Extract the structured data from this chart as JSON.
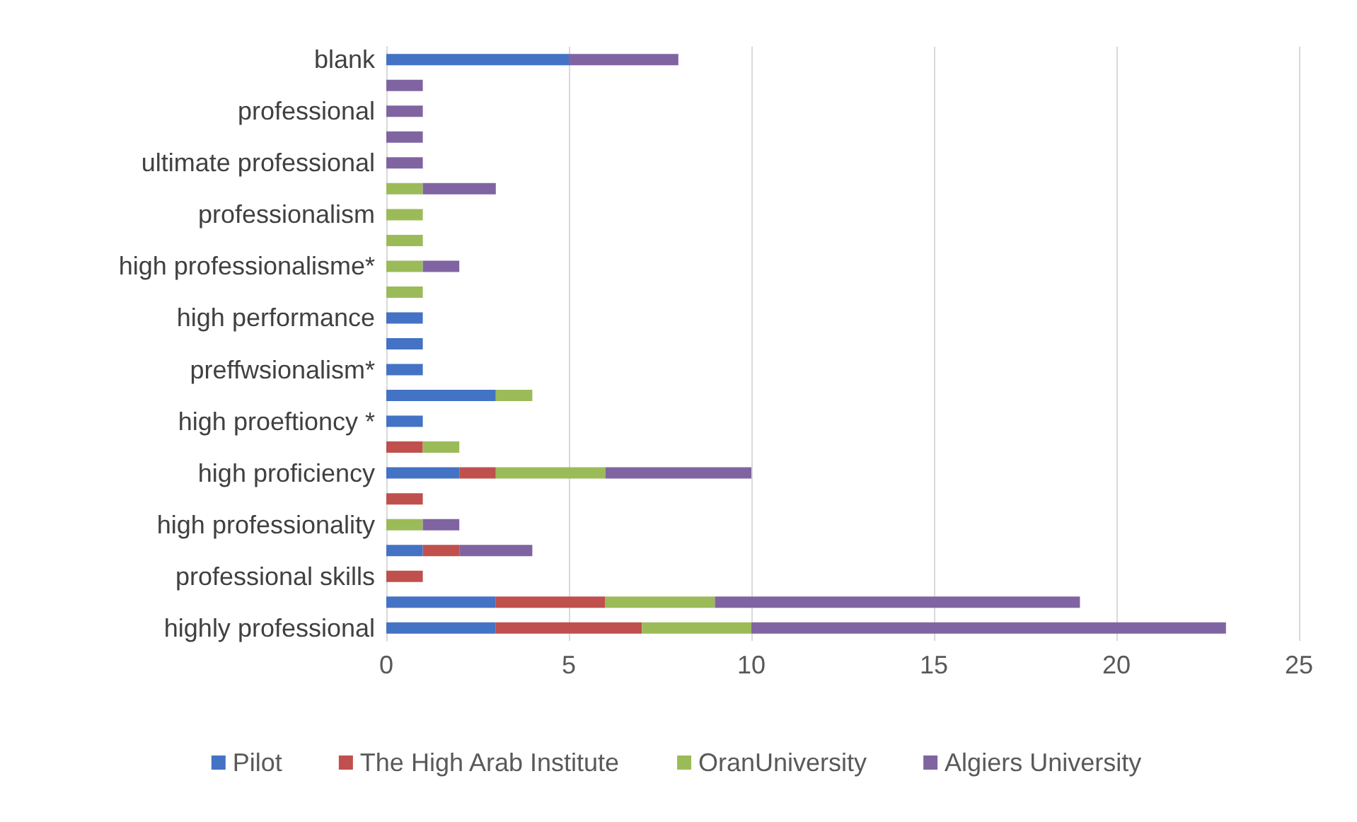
{
  "chart_data": {
    "type": "bar",
    "orientation": "horizontal",
    "stacked": true,
    "categories": [
      "blank",
      null,
      "professional",
      null,
      "ultimate professional",
      null,
      "professionalism",
      null,
      "high professionalisme*",
      null,
      "high performance",
      null,
      "preffwsionalism*",
      null,
      "high proeftioncy *",
      null,
      "high proficiency",
      null,
      "high professionality",
      null,
      "professional skills",
      null,
      "highly professional"
    ],
    "series": [
      {
        "name": "Pilot",
        "color": "#4472c4",
        "values": [
          5,
          null,
          null,
          null,
          null,
          null,
          null,
          null,
          null,
          null,
          1,
          1,
          1,
          3,
          1,
          null,
          2,
          null,
          null,
          1,
          null,
          3,
          3
        ]
      },
      {
        "name": "The High Arab Institute",
        "color": "#c0504d",
        "values": [
          null,
          null,
          null,
          null,
          null,
          null,
          null,
          null,
          null,
          null,
          null,
          null,
          null,
          null,
          null,
          1,
          1,
          1,
          null,
          1,
          1,
          3,
          4
        ]
      },
      {
        "name": "OranUniversity",
        "color": "#9bbb59",
        "values": [
          null,
          null,
          null,
          null,
          null,
          1,
          1,
          1,
          1,
          1,
          null,
          null,
          null,
          1,
          null,
          1,
          3,
          null,
          1,
          null,
          null,
          3,
          3
        ]
      },
      {
        "name": "Algiers University",
        "color": "#8064a2",
        "values": [
          3,
          1,
          1,
          1,
          1,
          2,
          null,
          null,
          1,
          null,
          null,
          null,
          null,
          null,
          null,
          null,
          4,
          null,
          1,
          2,
          null,
          10,
          13
        ]
      }
    ],
    "xlim": [
      0,
      25
    ],
    "xticks": [
      0,
      5,
      10,
      15,
      20,
      25
    ],
    "grid": "x",
    "legend": "bottom"
  }
}
